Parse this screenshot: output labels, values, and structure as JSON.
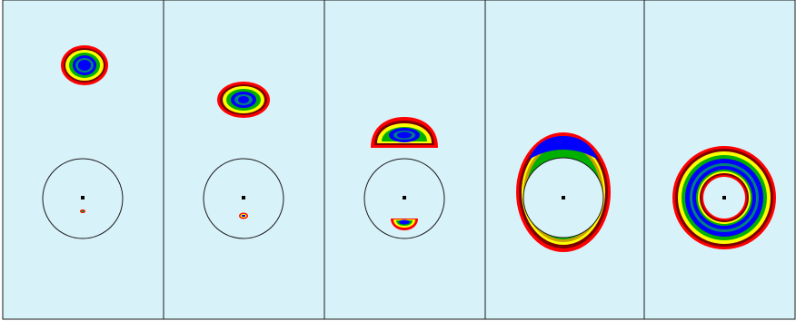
{
  "figure": {
    "panel_count": 5,
    "background_color": "#d8f2fa",
    "border_color": "#1a1a1a",
    "outline_color": "#1a1a1a",
    "contour_palette": [
      "#ff0000",
      "#7a0000",
      "#ffff00",
      "#00b000",
      "#0000ff",
      "#008080",
      "#0000ff"
    ],
    "panels": [
      {
        "stage": 1,
        "blob": "drop-above",
        "contact": "small-dot"
      },
      {
        "stage": 2,
        "blob": "drop-above-flattened",
        "contact": "small-ring"
      },
      {
        "stage": 3,
        "blob": "cap-touching",
        "contact": "small-cap-below"
      },
      {
        "stage": 4,
        "blob": "wrapping-ring",
        "contact": "none"
      },
      {
        "stage": 5,
        "blob": "full-ring",
        "contact": "none"
      }
    ]
  }
}
